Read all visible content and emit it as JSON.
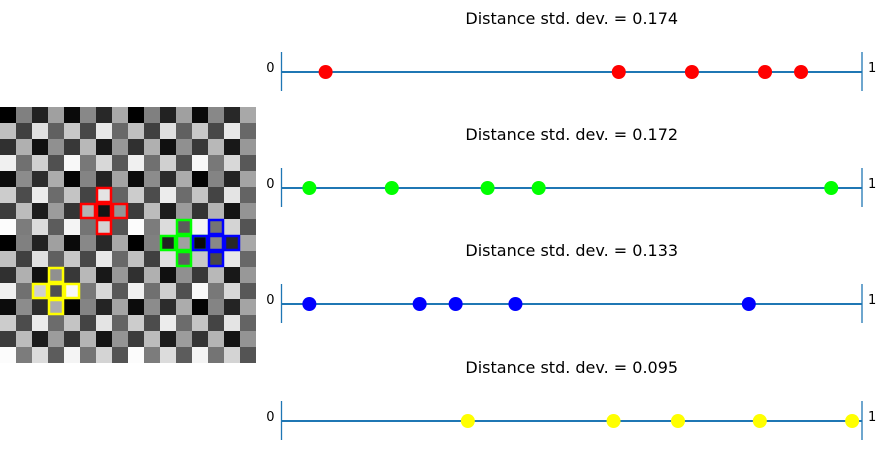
{
  "chart_data": [
    {
      "type": "scatter",
      "title": "Distance std. dev. = 0.174",
      "xlim": [
        0,
        1
      ],
      "tick_labels": [
        "0",
        "1"
      ],
      "color": "#ff0000",
      "x": [
        0.076,
        0.581,
        0.707,
        0.833,
        0.895
      ]
    },
    {
      "type": "scatter",
      "title": "Distance std. dev. = 0.172",
      "xlim": [
        0,
        1
      ],
      "tick_labels": [
        "0",
        "1"
      ],
      "color": "#00ff00",
      "x": [
        0.048,
        0.19,
        0.355,
        0.443,
        0.947
      ]
    },
    {
      "type": "scatter",
      "title": "Distance std. dev. = 0.133",
      "xlim": [
        0,
        1
      ],
      "tick_labels": [
        "0",
        "1"
      ],
      "color": "#0000ff",
      "x": [
        0.048,
        0.238,
        0.3,
        0.403,
        0.805
      ]
    },
    {
      "type": "scatter",
      "title": "Distance std. dev. = 0.095",
      "xlim": [
        0,
        1
      ],
      "tick_labels": [
        "0",
        "1"
      ],
      "color": "#ffff00",
      "x": [
        0.321,
        0.572,
        0.683,
        0.824,
        0.983
      ]
    },
    {
      "type": "heatmap",
      "colormap": "gray",
      "values_0_255": [
        [
          0,
          128,
          34,
          160,
          10,
          136,
          40,
          168
        ],
        [
          192,
          64,
          224,
          96,
          200,
          72,
          232,
          104
        ],
        [
          48,
          176,
          16,
          144,
          56,
          184,
          24,
          152
        ],
        [
          240,
          112,
          208,
          80,
          248,
          120,
          216,
          88
        ],
        [
          12,
          140,
          44,
          172,
          4,
          132,
          36,
          164
        ],
        [
          204,
          76,
          236,
          108,
          196,
          68,
          228,
          100
        ],
        [
          60,
          188,
          28,
          156,
          52,
          180,
          20,
          148
        ],
        [
          252,
          124,
          220,
          92,
          244,
          116,
          212,
          84
        ]
      ],
      "tile_repeat": [
        2,
        2
      ],
      "highlights": [
        {
          "color": "#ff0000",
          "center": [
            6,
            6
          ]
        },
        {
          "color": "#00ff00",
          "center": [
            11,
            8
          ]
        },
        {
          "color": "#0000ff",
          "center": [
            13,
            8
          ]
        },
        {
          "color": "#ffff00",
          "center": [
            3,
            11
          ]
        }
      ]
    }
  ]
}
